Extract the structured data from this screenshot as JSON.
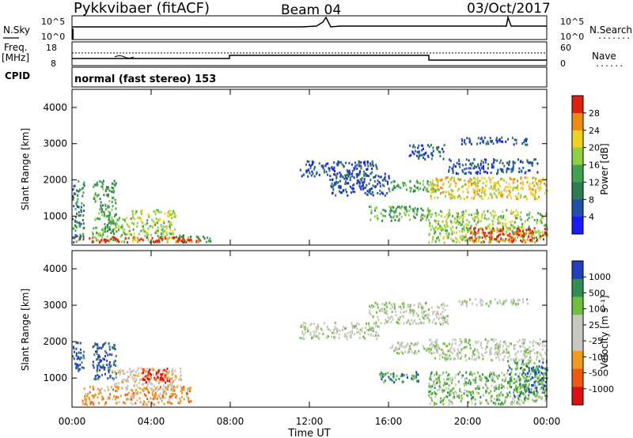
{
  "header": {
    "station": "Pykkvibaer (fitACF)",
    "beam": "Beam 04",
    "date": "03/Oct/2017"
  },
  "status_panels": {
    "nsky_label": "N.Sky",
    "nsearch_label": "N.Search",
    "freq_label_top": "Freq.",
    "freq_label_unit": "[MHz]",
    "nave_label": "Nave",
    "cpid_label": "CPID",
    "cpid_text": "normal (fast stereo) 153",
    "noise_left_ticks": [
      "10^5",
      "10^0"
    ],
    "noise_right_ticks": [
      "10^5",
      "10^0"
    ],
    "freq_left_ticks": [
      "18",
      "8"
    ],
    "nave_right_ticks": [
      "60",
      "0"
    ],
    "nave_dotted": "......",
    "nsearch_dotted": "......."
  },
  "colors": {
    "power": [
      "#1a1aff",
      "#1f4fa8",
      "#2f7d4f",
      "#3fa34f",
      "#8fd23f",
      "#f0d020",
      "#f08a10",
      "#e02010"
    ],
    "velocity": [
      "#e01010",
      "#f05a10",
      "#f09a20",
      "#c8c8c0",
      "#c8c8c0",
      "#70c040",
      "#2f8f4f",
      "#2040c0"
    ]
  },
  "chart_data": [
    {
      "type": "heatmap",
      "name": "power",
      "ylabel": "Slant Range [km]",
      "yticks": [
        "4000",
        "3000",
        "2000",
        "1000"
      ],
      "ylim": [
        200,
        4500
      ],
      "xlim": [
        0,
        24
      ],
      "colorbar_label": "Power [dB]",
      "colorbar_ticks": [
        "28",
        "24",
        "20",
        "16",
        "12",
        "8",
        "4"
      ],
      "colorbar_range": [
        0,
        32
      ],
      "regions": [
        {
          "t0": 0.0,
          "t1": 0.6,
          "r0": 300,
          "r1": 2000,
          "level": 2
        },
        {
          "t0": 1.0,
          "t1": 2.2,
          "r0": 300,
          "r1": 2000,
          "level": 3
        },
        {
          "t0": 2.2,
          "t1": 3.0,
          "r0": 300,
          "r1": 1000,
          "level": 4
        },
        {
          "t0": 3.0,
          "t1": 5.2,
          "r0": 300,
          "r1": 1200,
          "level": 4
        },
        {
          "t0": 5.2,
          "t1": 7.0,
          "r0": 300,
          "r1": 500,
          "level": 3
        },
        {
          "t0": 0.3,
          "t1": 6.5,
          "r0": 300,
          "r1": 450,
          "level": 7
        },
        {
          "t0": 11.5,
          "t1": 15.5,
          "r0": 2100,
          "r1": 2550,
          "level": 1
        },
        {
          "t0": 13.0,
          "t1": 16.0,
          "r0": 1600,
          "r1": 2200,
          "level": 1
        },
        {
          "t0": 16.0,
          "t1": 18.5,
          "r0": 1700,
          "r1": 2000,
          "level": 3
        },
        {
          "t0": 17.0,
          "t1": 18.8,
          "r0": 2600,
          "r1": 3000,
          "level": 1
        },
        {
          "t0": 18.0,
          "t1": 24.0,
          "r0": 1500,
          "r1": 2100,
          "level": 5
        },
        {
          "t0": 19.0,
          "t1": 23.5,
          "r0": 2200,
          "r1": 2600,
          "level": 1
        },
        {
          "t0": 19.5,
          "t1": 23.0,
          "r0": 3000,
          "r1": 3200,
          "level": 1
        },
        {
          "t0": 15.0,
          "t1": 18.0,
          "r0": 900,
          "r1": 1300,
          "level": 3
        },
        {
          "t0": 18.0,
          "t1": 24.0,
          "r0": 300,
          "r1": 1200,
          "level": 4
        },
        {
          "t0": 20.0,
          "t1": 24.0,
          "r0": 300,
          "r1": 700,
          "level": 7
        }
      ]
    },
    {
      "type": "heatmap",
      "name": "velocity",
      "ylabel": "Slant Range [km]",
      "yticks": [
        "4000",
        "3000",
        "2000",
        "1000"
      ],
      "ylim": [
        200,
        4500
      ],
      "xlim": [
        0,
        24
      ],
      "xticks": [
        "00:00",
        "04:00",
        "08:00",
        "12:00",
        "16:00",
        "20:00",
        "00:00"
      ],
      "xlabel": "Time UT",
      "colorbar_label": "Velocity [m s⁻¹]",
      "colorbar_ticks": [
        "1000",
        "500",
        "100",
        "25",
        "-25",
        "-100",
        "-500",
        "-1000"
      ],
      "regions": [
        {
          "t0": 0.0,
          "t1": 0.6,
          "r0": 1200,
          "r1": 2000,
          "level": 7
        },
        {
          "t0": 1.0,
          "t1": 2.2,
          "r0": 1000,
          "r1": 2000,
          "level": 7
        },
        {
          "t0": 0.5,
          "t1": 6.0,
          "r0": 300,
          "r1": 800,
          "level": 2
        },
        {
          "t0": 2.0,
          "t1": 5.5,
          "r0": 700,
          "r1": 1300,
          "level": 3
        },
        {
          "t0": 3.5,
          "t1": 5.0,
          "r0": 900,
          "r1": 1300,
          "level": 0
        },
        {
          "t0": 11.5,
          "t1": 15.5,
          "r0": 2100,
          "r1": 2550,
          "level": 4
        },
        {
          "t0": 15.0,
          "t1": 19.0,
          "r0": 2500,
          "r1": 3100,
          "level": 4
        },
        {
          "t0": 16.0,
          "t1": 18.5,
          "r0": 1700,
          "r1": 2000,
          "level": 4
        },
        {
          "t0": 18.0,
          "t1": 24.0,
          "r0": 1500,
          "r1": 2100,
          "level": 4
        },
        {
          "t0": 19.5,
          "t1": 23.0,
          "r0": 3000,
          "r1": 3200,
          "level": 4
        },
        {
          "t0": 15.5,
          "t1": 17.5,
          "r0": 900,
          "r1": 1200,
          "level": 6
        },
        {
          "t0": 18.0,
          "t1": 24.0,
          "r0": 300,
          "r1": 1200,
          "level": 5
        },
        {
          "t0": 22.0,
          "t1": 24.0,
          "r0": 500,
          "r1": 1500,
          "level": 6
        }
      ]
    }
  ]
}
